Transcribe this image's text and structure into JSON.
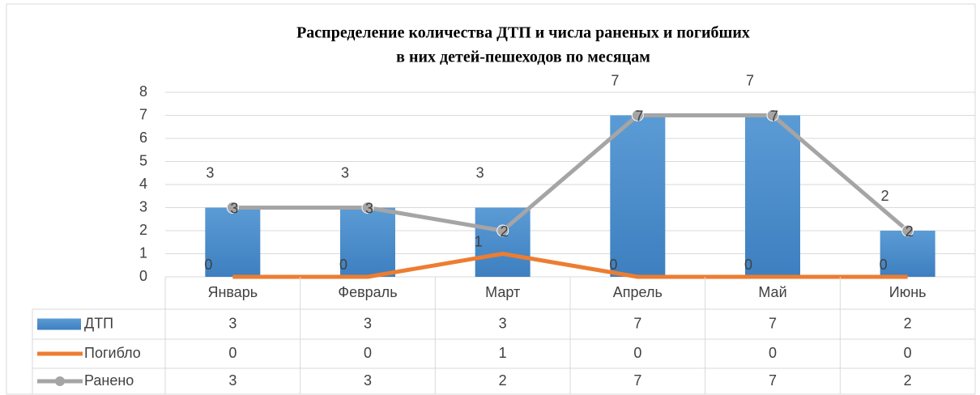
{
  "chart_data": {
    "type": "bar",
    "title": [
      "Распределение количества ДТП и числа раненых и погибших",
      "в них детей-пешеходов по месяцам"
    ],
    "categories": [
      "Январь",
      "Февраль",
      "Март",
      "Апрель",
      "Май",
      "Июнь"
    ],
    "series": [
      {
        "name": "ДТП",
        "type": "bar",
        "color": "#5b9bd5",
        "values": [
          3,
          3,
          3,
          7,
          7,
          2
        ]
      },
      {
        "name": "Погибло",
        "type": "line",
        "color": "#ed7d31",
        "values": [
          0,
          0,
          1,
          0,
          0,
          0
        ]
      },
      {
        "name": "Ранено",
        "type": "line",
        "color": "#a5a5a5",
        "values": [
          3,
          3,
          2,
          7,
          7,
          2
        ]
      }
    ],
    "ylim": [
      0,
      8
    ],
    "yticks": [
      0,
      1,
      2,
      3,
      4,
      5,
      6,
      7,
      8
    ],
    "grid": true,
    "data_table": true
  }
}
